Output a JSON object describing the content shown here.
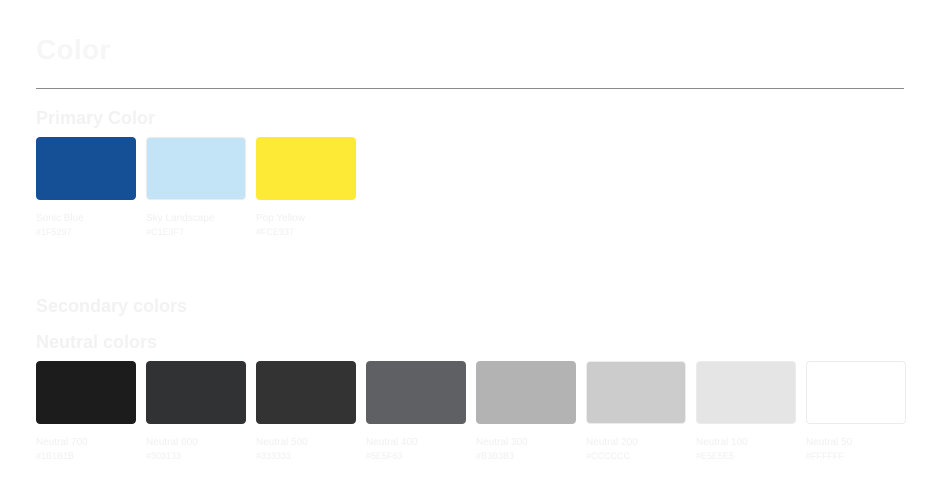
{
  "page": {
    "title": "Color"
  },
  "primary": {
    "heading": "Primary Color",
    "colors": [
      {
        "name": "Sonic Blue",
        "hex": "#1F5297",
        "fill": "#154f95"
      },
      {
        "name": "Sky Landscape",
        "hex": "#C1E3F7",
        "fill": "#c3e4f6"
      },
      {
        "name": "Pop Yellow",
        "hex": "#FCE937",
        "fill": "#fcea36"
      }
    ]
  },
  "secondary": {
    "heading": "Secondary colors"
  },
  "neutral": {
    "heading": "Neutral colors",
    "colors": [
      {
        "name": "Neutral 700",
        "hex": "#1B1B1B",
        "fill": "#1c1c1c"
      },
      {
        "name": "Neutral 600",
        "hex": "#303133",
        "fill": "#313234"
      },
      {
        "name": "Neutral 500",
        "hex": "#333333",
        "fill": "#333333"
      },
      {
        "name": "Neutral 400",
        "hex": "#5E5F63",
        "fill": "#5f6063"
      },
      {
        "name": "Neutral 300",
        "hex": "#B3B3B3",
        "fill": "#b3b3b3"
      },
      {
        "name": "Neutral 200",
        "hex": "#CCCCCC",
        "fill": "#cccccc"
      },
      {
        "name": "Neutral 100",
        "hex": "#E5E5E5",
        "fill": "#e5e5e5"
      },
      {
        "name": "Neutral 50",
        "hex": "#FFFFFF",
        "fill": "#ffffff"
      }
    ]
  }
}
